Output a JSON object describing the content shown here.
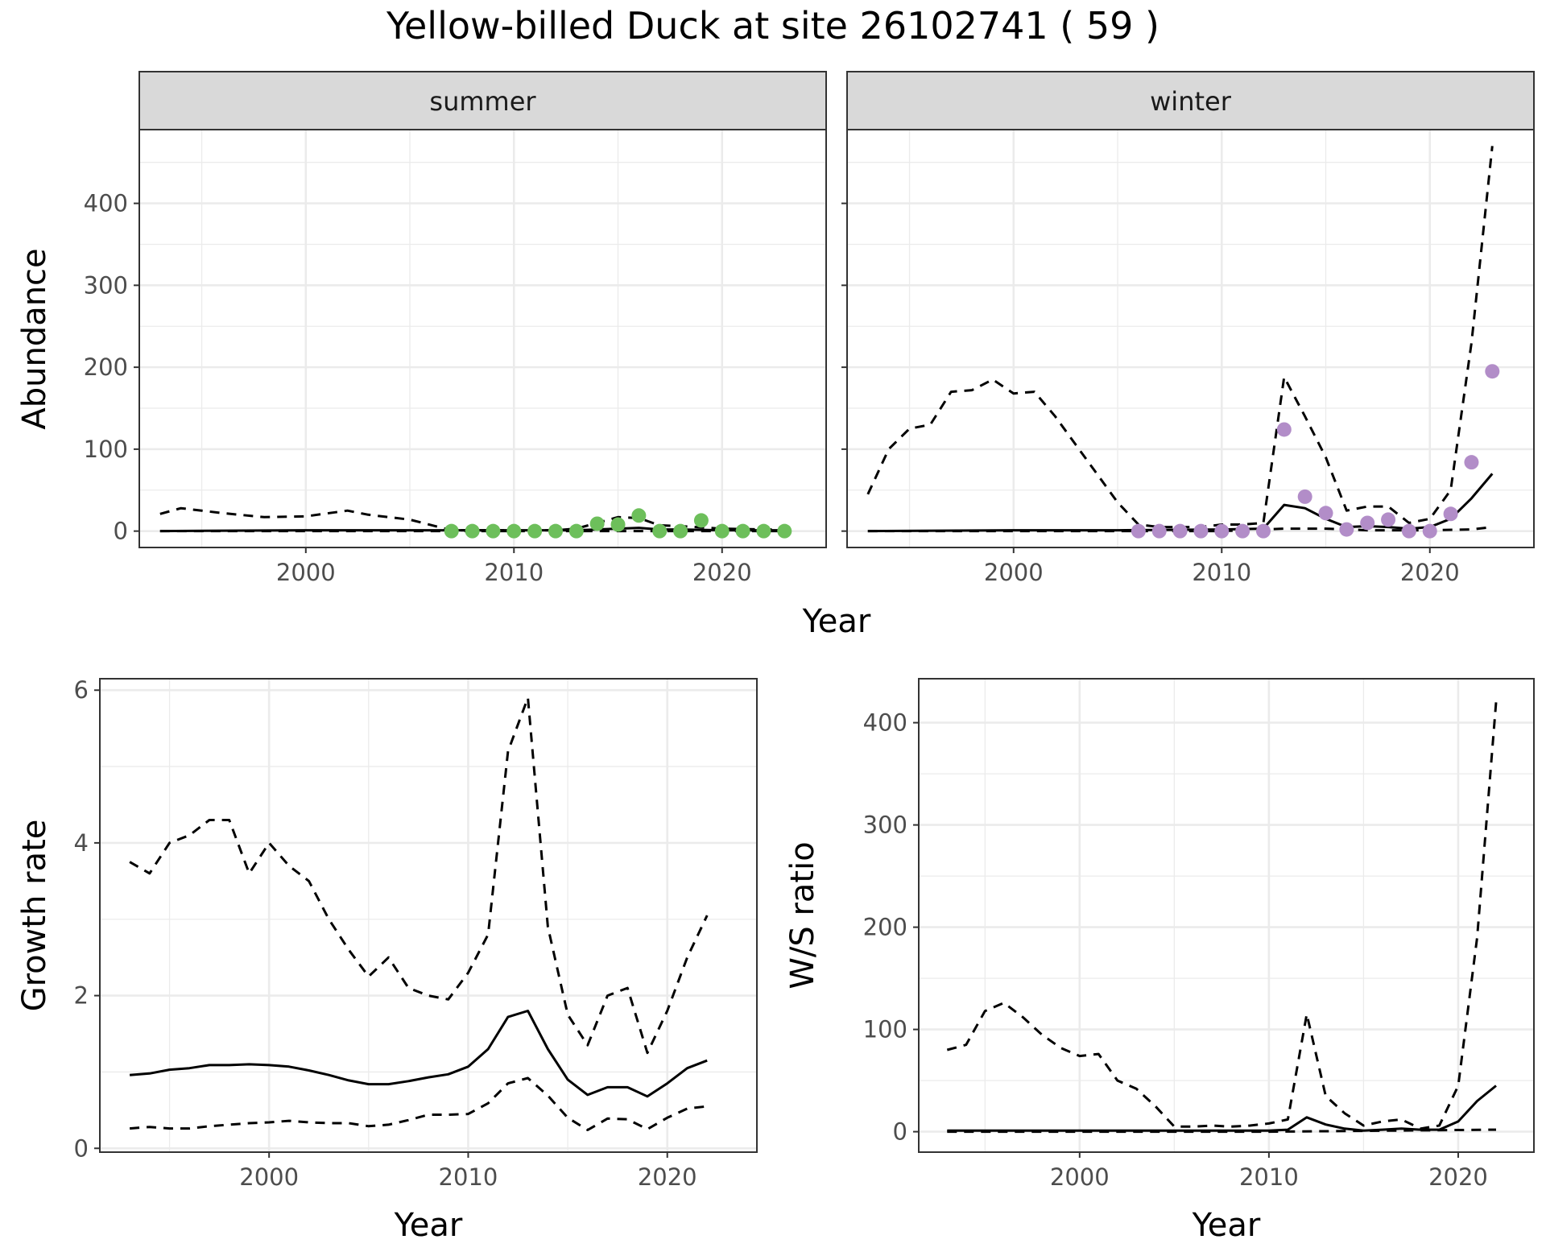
{
  "title": "Yellow-billed Duck at site 26102741 ( 59 )",
  "colors": {
    "summer_points": "#6dbf5b",
    "winter_points": "#b28dc8",
    "lines": "#000000"
  },
  "chart_data": [
    {
      "id": "summer",
      "type": "line",
      "panel": "summer",
      "xlabel": "",
      "ylabel": "Abundance",
      "xlim": [
        1992,
        2025
      ],
      "ylim": [
        -20,
        490
      ],
      "xticks": [
        2000,
        2010,
        2020
      ],
      "yticks": [
        0,
        100,
        200,
        300,
        400
      ],
      "grid": true,
      "series": [
        {
          "role": "upper",
          "x": [
            1993,
            1994,
            1996,
            1998,
            2000,
            2002,
            2003,
            2005,
            2007,
            2010,
            2012,
            2013,
            2015,
            2016,
            2017,
            2018,
            2020,
            2022,
            2023
          ],
          "y": [
            21,
            28,
            22,
            17,
            18,
            25,
            20,
            14,
            1,
            1,
            1,
            3,
            17,
            16,
            7,
            6,
            3,
            2,
            2
          ]
        },
        {
          "role": "estimate",
          "x": [
            1993,
            2000,
            2005,
            2010,
            2013,
            2015,
            2016,
            2017,
            2018,
            2020,
            2023
          ],
          "y": [
            0,
            1,
            1,
            1,
            1,
            3,
            4,
            2,
            2,
            1,
            1
          ]
        },
        {
          "role": "lower",
          "x": [
            1993,
            2023
          ],
          "y": [
            0,
            0
          ]
        },
        {
          "role": "observed",
          "x": [
            2007,
            2008,
            2009,
            2010,
            2011,
            2012,
            2013,
            2014,
            2015,
            2016,
            2017,
            2018,
            2019,
            2020,
            2021,
            2022,
            2023
          ],
          "y": [
            0,
            0,
            0,
            0,
            0,
            0,
            0,
            9,
            8,
            19,
            0,
            0,
            13,
            0,
            0,
            0,
            0
          ]
        }
      ]
    },
    {
      "id": "winter",
      "type": "line",
      "panel": "winter",
      "xlabel": "",
      "ylabel": "",
      "xlim": [
        1992,
        2025
      ],
      "ylim": [
        -20,
        490
      ],
      "xticks": [
        2000,
        2010,
        2020
      ],
      "yticks": [
        0,
        100,
        200,
        300,
        400
      ],
      "grid": true,
      "series": [
        {
          "role": "upper",
          "x": [
            1993,
            1994,
            1995,
            1996,
            1997,
            1998,
            1999,
            2000,
            2001,
            2002,
            2003,
            2004,
            2005,
            2006,
            2007,
            2008,
            2009,
            2010,
            2011,
            2012,
            2013,
            2014,
            2015,
            2016,
            2017,
            2018,
            2019,
            2020,
            2021,
            2022,
            2023
          ],
          "y": [
            45,
            100,
            125,
            130,
            170,
            172,
            185,
            168,
            170,
            140,
            105,
            70,
            35,
            8,
            5,
            5,
            5,
            8,
            8,
            10,
            188,
            140,
            90,
            25,
            30,
            30,
            10,
            15,
            50,
            230,
            470
          ]
        },
        {
          "role": "estimate",
          "x": [
            1993,
            2000,
            2005,
            2010,
            2012,
            2013,
            2014,
            2015,
            2016,
            2017,
            2018,
            2019,
            2020,
            2021,
            2022,
            2023
          ],
          "y": [
            0,
            1,
            1,
            2,
            3,
            32,
            28,
            15,
            5,
            6,
            5,
            3,
            5,
            15,
            40,
            70
          ]
        },
        {
          "role": "lower",
          "x": [
            1993,
            2010,
            2013,
            2015,
            2017,
            2020,
            2022,
            2023
          ],
          "y": [
            0,
            0,
            3,
            3,
            1,
            1,
            2,
            5
          ]
        },
        {
          "role": "observed",
          "x": [
            2006,
            2007,
            2008,
            2009,
            2010,
            2011,
            2012,
            2013,
            2014,
            2015,
            2016,
            2017,
            2018,
            2019,
            2020,
            2021,
            2022,
            2023
          ],
          "y": [
            0,
            0,
            0,
            0,
            0,
            0,
            0,
            124,
            42,
            22,
            2,
            10,
            14,
            0,
            0,
            21,
            84,
            195
          ]
        }
      ]
    },
    {
      "id": "growth",
      "type": "line",
      "xlabel": "Year",
      "ylabel": "Growth rate",
      "xlim": [
        1991.5,
        2024.5
      ],
      "ylim": [
        -0.05,
        6.15
      ],
      "xticks": [
        2000,
        2010,
        2020
      ],
      "yticks": [
        0,
        2,
        4,
        6
      ],
      "grid": true,
      "series": [
        {
          "role": "upper",
          "x": [
            1993,
            1994,
            1995,
            1996,
            1997,
            1998,
            1999,
            2000,
            2001,
            2002,
            2003,
            2004,
            2005,
            2006,
            2007,
            2008,
            2009,
            2010,
            2011,
            2012,
            2013,
            2014,
            2015,
            2016,
            2017,
            2018,
            2019,
            2020,
            2021,
            2022
          ],
          "y": [
            3.75,
            3.6,
            4.0,
            4.1,
            4.3,
            4.3,
            3.6,
            4.0,
            3.7,
            3.5,
            3.0,
            2.6,
            2.25,
            2.5,
            2.1,
            2.0,
            1.95,
            2.3,
            2.8,
            5.2,
            5.9,
            2.9,
            1.75,
            1.35,
            2.0,
            2.1,
            1.25,
            1.8,
            2.5,
            3.05
          ]
        },
        {
          "role": "estimate",
          "x": [
            1993,
            1994,
            1995,
            1996,
            1997,
            1998,
            1999,
            2000,
            2001,
            2002,
            2003,
            2004,
            2005,
            2006,
            2007,
            2008,
            2009,
            2010,
            2011,
            2012,
            2013,
            2014,
            2015,
            2016,
            2017,
            2018,
            2019,
            2020,
            2021,
            2022
          ],
          "y": [
            0.96,
            0.98,
            1.03,
            1.05,
            1.09,
            1.09,
            1.1,
            1.09,
            1.07,
            1.02,
            0.96,
            0.89,
            0.84,
            0.84,
            0.88,
            0.93,
            0.97,
            1.07,
            1.3,
            1.72,
            1.8,
            1.3,
            0.9,
            0.7,
            0.8,
            0.8,
            0.68,
            0.85,
            1.05,
            1.15
          ]
        },
        {
          "role": "lower",
          "x": [
            1993,
            1994,
            1995,
            1996,
            1997,
            1998,
            1999,
            2000,
            2001,
            2002,
            2003,
            2004,
            2005,
            2006,
            2007,
            2008,
            2009,
            2010,
            2011,
            2012,
            2013,
            2014,
            2015,
            2016,
            2017,
            2018,
            2019,
            2020,
            2021,
            2022
          ],
          "y": [
            0.26,
            0.28,
            0.26,
            0.26,
            0.29,
            0.31,
            0.33,
            0.34,
            0.36,
            0.34,
            0.33,
            0.33,
            0.29,
            0.31,
            0.37,
            0.44,
            0.44,
            0.45,
            0.59,
            0.85,
            0.92,
            0.69,
            0.4,
            0.24,
            0.39,
            0.38,
            0.25,
            0.4,
            0.52,
            0.55
          ]
        }
      ]
    },
    {
      "id": "ratio",
      "type": "line",
      "xlabel": "Year",
      "ylabel": "W/S ratio",
      "xlim": [
        1991.5,
        2024
      ],
      "ylim": [
        -20,
        443
      ],
      "xticks": [
        2000,
        2010,
        2020
      ],
      "yticks": [
        0,
        100,
        200,
        300,
        400
      ],
      "grid": true,
      "series": [
        {
          "role": "upper",
          "x": [
            1993,
            1994,
            1995,
            1996,
            1997,
            1998,
            1999,
            2000,
            2001,
            2002,
            2003,
            2004,
            2005,
            2006,
            2007,
            2008,
            2009,
            2010,
            2011,
            2012,
            2013,
            2014,
            2015,
            2016,
            2017,
            2018,
            2019,
            2020,
            2021,
            2022
          ],
          "y": [
            80,
            85,
            118,
            126,
            112,
            95,
            82,
            74,
            76,
            50,
            42,
            25,
            5,
            5,
            6,
            5,
            6,
            8,
            12,
            115,
            35,
            18,
            6,
            10,
            12,
            3,
            6,
            45,
            190,
            420
          ]
        },
        {
          "role": "estimate",
          "x": [
            1993,
            2000,
            2005,
            2010,
            2011,
            2012,
            2013,
            2014,
            2015,
            2016,
            2017,
            2018,
            2019,
            2020,
            2021,
            2022
          ],
          "y": [
            1,
            1,
            1,
            1,
            2,
            14,
            7,
            3,
            1,
            2,
            3,
            2,
            2,
            10,
            30,
            45
          ]
        },
        {
          "role": "lower",
          "x": [
            1993,
            2010,
            2022
          ],
          "y": [
            0,
            0,
            2
          ]
        }
      ]
    }
  ]
}
